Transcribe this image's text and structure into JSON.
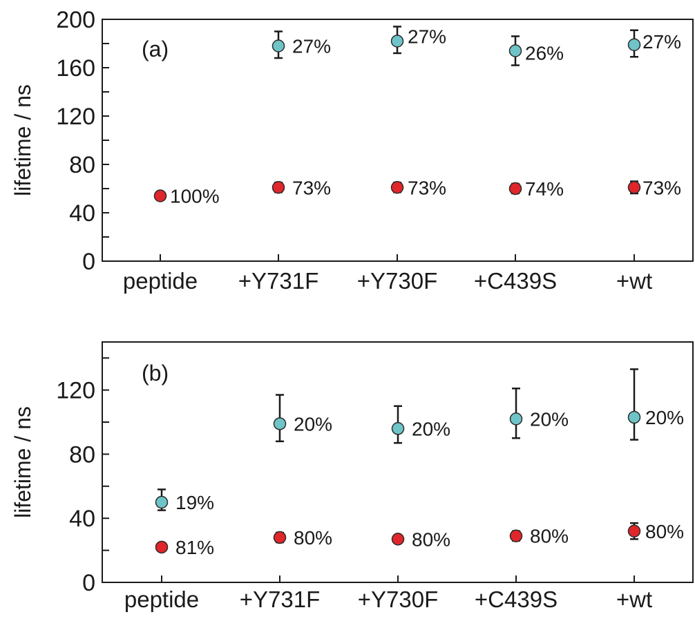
{
  "colors": {
    "long_component": "#6fc4c8",
    "short_component": "#e0262b",
    "axis": "#1a1a1a"
  },
  "chart_data": [
    {
      "type": "scatter",
      "panel_label": "(a)",
      "ylabel": "lifetime / ns",
      "ylim": [
        0,
        200
      ],
      "yticks": [
        0,
        40,
        80,
        120,
        160,
        200
      ],
      "categories": [
        "peptide",
        "+Y731F",
        "+Y730F",
        "+C439S",
        "+wt"
      ],
      "series": [
        {
          "color": "#6fc4c8",
          "points": [
            {
              "category": "+Y731F",
              "y": 178,
              "err_low": 10,
              "err_high": 12,
              "label": "27%"
            },
            {
              "category": "+Y730F",
              "y": 182,
              "err_low": 10,
              "err_high": 12,
              "label": "27%"
            },
            {
              "category": "+C439S",
              "y": 174,
              "err_low": 12,
              "err_high": 12,
              "label": "26%"
            },
            {
              "category": "+wt",
              "y": 179,
              "err_low": 10,
              "err_high": 12,
              "label": "27%"
            }
          ]
        },
        {
          "color": "#e0262b",
          "points": [
            {
              "category": "peptide",
              "y": 54,
              "err_low": 0,
              "err_high": 0,
              "label": "100%"
            },
            {
              "category": "+Y731F",
              "y": 61,
              "err_low": 4,
              "err_high": 4,
              "label": "73%"
            },
            {
              "category": "+Y730F",
              "y": 61,
              "err_low": 4,
              "err_high": 4,
              "label": "73%"
            },
            {
              "category": "+C439S",
              "y": 60,
              "err_low": 4,
              "err_high": 4,
              "label": "74%"
            },
            {
              "category": "+wt",
              "y": 61,
              "err_low": 5,
              "err_high": 5,
              "label": "73%"
            }
          ]
        }
      ]
    },
    {
      "type": "scatter",
      "panel_label": "(b)",
      "ylabel": "lifetime / ns",
      "ylim": [
        0,
        150
      ],
      "yticks": [
        0,
        40,
        80,
        120
      ],
      "categories": [
        "peptide",
        "+Y731F",
        "+Y730F",
        "+C439S",
        "+wt"
      ],
      "series": [
        {
          "color": "#6fc4c8",
          "points": [
            {
              "category": "peptide",
              "y": 50,
              "err_low": 5,
              "err_high": 8,
              "label": "19%"
            },
            {
              "category": "+Y731F",
              "y": 99,
              "err_low": 11,
              "err_high": 18,
              "label": "20%"
            },
            {
              "category": "+Y730F",
              "y": 96,
              "err_low": 9,
              "err_high": 14,
              "label": "20%"
            },
            {
              "category": "+C439S",
              "y": 102,
              "err_low": 12,
              "err_high": 19,
              "label": "20%"
            },
            {
              "category": "+wt",
              "y": 103,
              "err_low": 14,
              "err_high": 30,
              "label": "20%"
            }
          ]
        },
        {
          "color": "#e0262b",
          "points": [
            {
              "category": "peptide",
              "y": 22,
              "err_low": 0,
              "err_high": 0,
              "label": "81%"
            },
            {
              "category": "+Y731F",
              "y": 28,
              "err_low": 3,
              "err_high": 3,
              "label": "80%"
            },
            {
              "category": "+Y730F",
              "y": 27,
              "err_low": 2,
              "err_high": 2,
              "label": "80%"
            },
            {
              "category": "+C439S",
              "y": 29,
              "err_low": 3,
              "err_high": 3,
              "label": "80%"
            },
            {
              "category": "+wt",
              "y": 32,
              "err_low": 5,
              "err_high": 5,
              "label": "80%"
            }
          ]
        }
      ]
    }
  ]
}
